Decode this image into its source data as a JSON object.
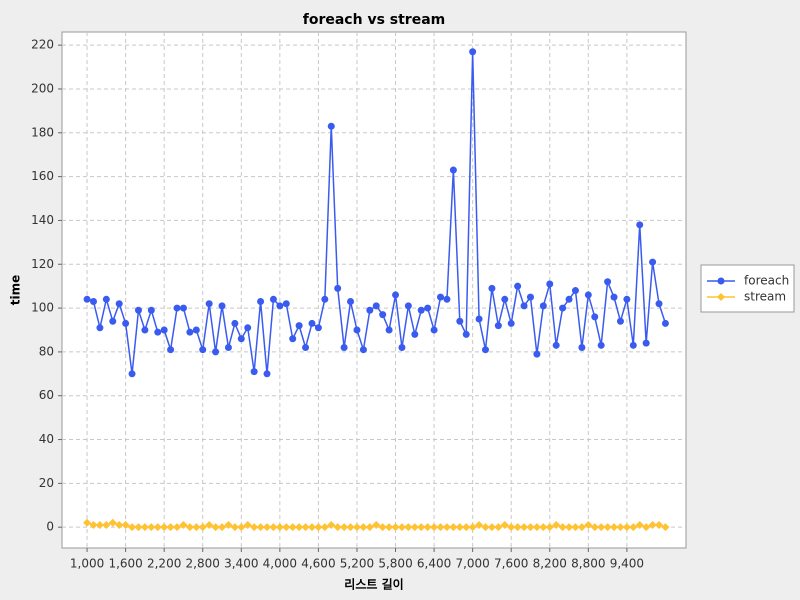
{
  "chart_data": {
    "type": "line",
    "title": "foreach vs stream",
    "x_label": "리스트 길이",
    "y_label": "time",
    "x": [
      1000,
      1100,
      1200,
      1300,
      1400,
      1500,
      1600,
      1700,
      1800,
      1900,
      2000,
      2100,
      2200,
      2300,
      2400,
      2500,
      2600,
      2700,
      2800,
      2900,
      3000,
      3100,
      3200,
      3300,
      3400,
      3500,
      3600,
      3700,
      3800,
      3900,
      4000,
      4100,
      4200,
      4300,
      4400,
      4500,
      4600,
      4700,
      4800,
      4900,
      5000,
      5100,
      5200,
      5300,
      5400,
      5500,
      5600,
      5700,
      5800,
      5900,
      6000,
      6100,
      6200,
      6300,
      6400,
      6500,
      6600,
      6700,
      6800,
      6900,
      7000,
      7100,
      7200,
      7300,
      7400,
      7500,
      7600,
      7700,
      7800,
      7900,
      8000,
      8100,
      8200,
      8300,
      8400,
      8500,
      8600,
      8700,
      8800,
      8900,
      9000,
      9100,
      9200,
      9300,
      9400,
      9500,
      9600,
      9700,
      9800,
      9900,
      10000
    ],
    "series": [
      {
        "name": "foreach",
        "color": "#3a5bf0",
        "marker": "circle",
        "values": [
          104,
          103,
          91,
          104,
          94,
          102,
          93,
          70,
          99,
          90,
          99,
          89,
          90,
          81,
          100,
          100,
          89,
          90,
          81,
          102,
          80,
          101,
          82,
          93,
          86,
          91,
          71,
          103,
          70,
          104,
          101,
          102,
          86,
          92,
          82,
          93,
          91,
          104,
          183,
          109,
          82,
          103,
          90,
          81,
          99,
          101,
          97,
          90,
          106,
          82,
          101,
          88,
          99,
          100,
          90,
          105,
          104,
          163,
          94,
          88,
          217,
          95,
          81,
          109,
          92,
          104,
          93,
          110,
          101,
          105,
          79,
          101,
          111,
          83,
          100,
          104,
          108,
          82,
          106,
          96,
          83,
          112,
          105,
          94,
          104,
          83,
          138,
          84,
          121,
          102,
          93
        ]
      },
      {
        "name": "stream",
        "color": "#ffc233",
        "marker": "diamond",
        "values": [
          2,
          1,
          1,
          1,
          2,
          1,
          1,
          0,
          0,
          0,
          0,
          0,
          0,
          0,
          0,
          1,
          0,
          0,
          0,
          1,
          0,
          0,
          1,
          0,
          0,
          1,
          0,
          0,
          0,
          0,
          0,
          0,
          0,
          0,
          0,
          0,
          0,
          0,
          1,
          0,
          0,
          0,
          0,
          0,
          0,
          1,
          0,
          0,
          0,
          0,
          0,
          0,
          0,
          0,
          0,
          0,
          0,
          0,
          0,
          0,
          0,
          1,
          0,
          0,
          0,
          1,
          0,
          0,
          0,
          0,
          0,
          0,
          0,
          1,
          0,
          0,
          0,
          0,
          1,
          0,
          0,
          0,
          0,
          0,
          0,
          0,
          1,
          0,
          1,
          1,
          0
        ]
      }
    ],
    "xlim": [
      610,
      10320
    ],
    "ylim": [
      -9.5,
      226
    ],
    "xticks": [
      {
        "value": 1000,
        "label": "1,000"
      },
      {
        "value": 1600,
        "label": "1,600"
      },
      {
        "value": 2200,
        "label": "2,200"
      },
      {
        "value": 2800,
        "label": "2,800"
      },
      {
        "value": 3400,
        "label": "3,400"
      },
      {
        "value": 4000,
        "label": "4,000"
      },
      {
        "value": 4600,
        "label": "4,600"
      },
      {
        "value": 5200,
        "label": "5,200"
      },
      {
        "value": 5800,
        "label": "5,800"
      },
      {
        "value": 6400,
        "label": "6,400"
      },
      {
        "value": 7000,
        "label": "7,000"
      },
      {
        "value": 7600,
        "label": "7,600"
      },
      {
        "value": 8200,
        "label": "8,200"
      },
      {
        "value": 8800,
        "label": "8,800"
      },
      {
        "value": 9400,
        "label": "9,400"
      }
    ],
    "yticks": [
      0,
      20,
      40,
      60,
      80,
      100,
      120,
      140,
      160,
      180,
      200,
      220
    ],
    "grid": true,
    "legend": "right"
  }
}
